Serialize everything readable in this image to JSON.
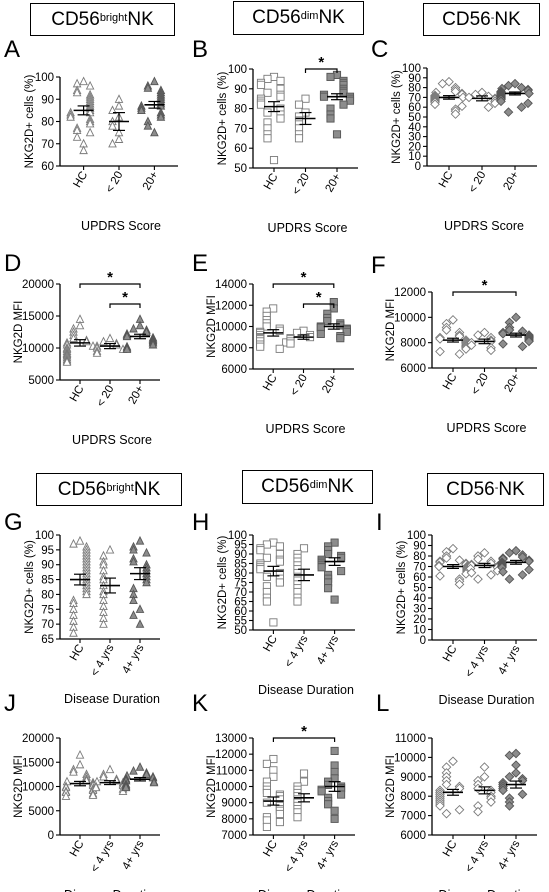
{
  "headers": [
    {
      "base": "CD56",
      "sup": "bright",
      "tail": " NK"
    },
    {
      "base": "CD56",
      "sup": "dim",
      "tail": " NK"
    },
    {
      "base": "CD56",
      "sup": "-",
      "tail": " NK"
    },
    {
      "base": "CD56",
      "sup": "bright",
      "tail": " NK"
    },
    {
      "base": "CD56",
      "sup": "dim",
      "tail": " NK"
    },
    {
      "base": "CD56",
      "sup": "-",
      "tail": " NK"
    }
  ],
  "chart_data": [
    {
      "letter": "A",
      "type": "scatter",
      "marker": "triangle",
      "ylabel": "NKG2D+ cells (%)",
      "xlabel": "UPDRS Score",
      "categories": [
        "HC",
        "< 20",
        "20+"
      ],
      "ylim": [
        60,
        100
      ],
      "yticks": [
        60,
        70,
        80,
        90,
        100
      ],
      "means": [
        85,
        80,
        87.5
      ],
      "sem": [
        2,
        4,
        1.5
      ],
      "points": [
        [
          98,
          97,
          96,
          94,
          93,
          92,
          91,
          90,
          89,
          88,
          87,
          86,
          85,
          84,
          84,
          83,
          82,
          81,
          80,
          79,
          77,
          76,
          75,
          73,
          70,
          67
        ],
        [
          90,
          87,
          85,
          82,
          80,
          78,
          75,
          72,
          70
        ],
        [
          98,
          96,
          95,
          94,
          93,
          92,
          91,
          90,
          89,
          88,
          87,
          87,
          86,
          85,
          84,
          83,
          82,
          80,
          78,
          75
        ]
      ],
      "brackets": []
    },
    {
      "letter": "B",
      "type": "scatter",
      "marker": "square",
      "ylabel": "NKG2D+ cells (%)",
      "xlabel": "UPDRS Score",
      "categories": [
        "HC",
        "< 20",
        "20+"
      ],
      "ylim": [
        50,
        100
      ],
      "yticks": [
        50,
        60,
        70,
        80,
        90,
        100
      ],
      "means": [
        81,
        75,
        86
      ],
      "sem": [
        2.5,
        3,
        1.5
      ],
      "points": [
        [
          96,
          95,
          94,
          93,
          92,
          90,
          88,
          87,
          86,
          85,
          84,
          83,
          82,
          80,
          78,
          77,
          75,
          73,
          70,
          67,
          65,
          54
        ],
        [
          85,
          82,
          78,
          76,
          74,
          72,
          70,
          67,
          65
        ],
        [
          97,
          96,
          94,
          93,
          92,
          90,
          89,
          88,
          87,
          86,
          86,
          85,
          84,
          82,
          80,
          77,
          75,
          67
        ]
      ],
      "brackets": [
        {
          "from": 1,
          "to": 2,
          "level": 0,
          "label": "*"
        }
      ]
    },
    {
      "letter": "C",
      "type": "scatter",
      "marker": "diamond",
      "ylabel": "NKG2D+ cells (%)",
      "xlabel": "UPDRS Score",
      "categories": [
        "HC",
        "< 20",
        "20+"
      ],
      "ylim": [
        0,
        100
      ],
      "yticks": [
        0,
        10,
        20,
        30,
        40,
        50,
        60,
        70,
        80,
        90,
        100
      ],
      "means": [
        70,
        69,
        74
      ],
      "sem": [
        1.8,
        2.5,
        1.5
      ],
      "points": [
        [
          86,
          84,
          80,
          78,
          76,
          75,
          74,
          73,
          72,
          71,
          70,
          70,
          69,
          68,
          67,
          66,
          65,
          63,
          61,
          58,
          56,
          53
        ],
        [
          75,
          73,
          71,
          70,
          69,
          68,
          66,
          64,
          60
        ],
        [
          84,
          82,
          80,
          79,
          78,
          77,
          76,
          75,
          74,
          74,
          73,
          72,
          71,
          70,
          69,
          68,
          66,
          64,
          60,
          55
        ]
      ],
      "brackets": []
    },
    {
      "letter": "D",
      "type": "scatter",
      "marker": "triangle",
      "ylabel": "NKG2D MFI",
      "xlabel": "UPDRS Score",
      "categories": [
        "HC",
        "< 20",
        "20+"
      ],
      "ylim": [
        5000,
        20000
      ],
      "yticks": [
        5000,
        10000,
        15000,
        20000
      ],
      "means": [
        10800,
        10300,
        11800
      ],
      "sem": [
        500,
        400,
        350
      ],
      "points": [
        [
          14500,
          13500,
          13000,
          12500,
          12000,
          11500,
          11200,
          11000,
          10800,
          10500,
          10300,
          10000,
          9800,
          9500,
          9200,
          9000,
          8800,
          8500,
          8200,
          8000,
          7800
        ],
        [
          11500,
          11000,
          10700,
          10500,
          10300,
          10000,
          9800,
          9500,
          9200
        ],
        [
          14500,
          13500,
          13000,
          12800,
          12500,
          12200,
          12000,
          11800,
          11600,
          11400,
          11200,
          11000,
          10800,
          10500,
          10200,
          10000,
          9800
        ]
      ],
      "brackets": [
        {
          "from": 0,
          "to": 2,
          "level": 1,
          "label": "*"
        },
        {
          "from": 1,
          "to": 2,
          "level": 0,
          "label": "*"
        }
      ]
    },
    {
      "letter": "E",
      "type": "scatter",
      "marker": "square",
      "ylabel": "NKG2D MFI",
      "xlabel": "UPDRS Score",
      "categories": [
        "HC",
        "< 20",
        "20+"
      ],
      "ylim": [
        6000,
        14000
      ],
      "yticks": [
        6000,
        8000,
        10000,
        12000,
        14000
      ],
      "means": [
        9400,
        9000,
        10000
      ],
      "sem": [
        300,
        200,
        250
      ],
      "points": [
        [
          11700,
          11400,
          11000,
          10600,
          10300,
          10000,
          9800,
          9600,
          9500,
          9400,
          9200,
          9000,
          8900,
          8800,
          8600,
          8500,
          8300,
          8100,
          7900
        ],
        [
          9600,
          9400,
          9200,
          9000,
          8900,
          8800,
          8600,
          8400
        ],
        [
          12300,
          11700,
          11200,
          10800,
          10500,
          10300,
          10100,
          10000,
          9900,
          9800,
          9700,
          9500,
          9300,
          9100,
          8900
        ]
      ],
      "brackets": [
        {
          "from": 0,
          "to": 2,
          "level": 1,
          "label": "*"
        },
        {
          "from": 1,
          "to": 2,
          "level": 0,
          "label": "*"
        }
      ]
    },
    {
      "letter": "F",
      "type": "scatter",
      "marker": "diamond",
      "ylabel": "NKG2D MFI",
      "xlabel": "UPDRS Score",
      "categories": [
        "HC",
        "< 20",
        "20+"
      ],
      "ylim": [
        6000,
        12000
      ],
      "yticks": [
        6000,
        8000,
        10000,
        12000
      ],
      "means": [
        8200,
        8100,
        8600
      ],
      "sem": [
        150,
        180,
        150
      ],
      "points": [
        [
          9800,
          9500,
          9200,
          9000,
          8800,
          8600,
          8500,
          8400,
          8300,
          8200,
          8100,
          8000,
          7900,
          7800,
          7700,
          7600,
          7500,
          7300,
          7100
        ],
        [
          8800,
          8600,
          8400,
          8200,
          8100,
          8000,
          7800,
          7600,
          7400
        ],
        [
          10000,
          9600,
          9200,
          9000,
          8900,
          8800,
          8700,
          8600,
          8500,
          8400,
          8300,
          8200,
          8100,
          7900,
          7700
        ]
      ],
      "brackets": [
        {
          "from": 0,
          "to": 2,
          "level": 0,
          "label": "*"
        }
      ]
    },
    {
      "letter": "G",
      "type": "scatter",
      "marker": "triangle",
      "ylabel": "NKG2D+ cells (%)",
      "xlabel": "Disease Duration",
      "categories": [
        "HC",
        "< 4 yrs",
        "4+ yrs"
      ],
      "ylim": [
        65,
        100
      ],
      "yticks": [
        65,
        70,
        75,
        80,
        85,
        90,
        95,
        100
      ],
      "means": [
        85,
        83,
        87
      ],
      "sem": [
        1.8,
        2.5,
        2
      ],
      "points": [
        [
          98,
          97,
          96,
          95,
          94,
          93,
          92,
          91,
          90,
          89,
          88,
          87,
          86,
          85,
          84,
          83,
          82,
          81,
          80,
          78,
          77,
          75,
          73,
          71,
          69,
          67
        ],
        [
          95,
          93,
          91,
          90,
          88,
          86,
          85,
          83,
          81,
          80,
          78,
          76,
          74,
          72,
          70
        ],
        [
          98,
          96,
          95,
          94,
          92,
          91,
          90,
          89,
          88,
          87,
          86,
          85,
          84,
          82,
          80,
          78,
          75,
          73,
          70
        ]
      ],
      "brackets": []
    },
    {
      "letter": "H",
      "type": "scatter",
      "marker": "square",
      "ylabel": "NKG2D+ cells (%)",
      "xlabel": "Disease Duration",
      "categories": [
        "HC",
        "< 4 yrs",
        "4+ yrs"
      ],
      "ylim": [
        50,
        100
      ],
      "yticks": [
        50,
        55,
        60,
        65,
        70,
        75,
        80,
        85,
        90,
        95,
        100
      ],
      "means": [
        81,
        79,
        86
      ],
      "sem": [
        2.5,
        3,
        2
      ],
      "points": [
        [
          96,
          95,
          94,
          93,
          92,
          90,
          88,
          87,
          86,
          85,
          84,
          83,
          82,
          80,
          78,
          77,
          75,
          73,
          70,
          67,
          65,
          54
        ],
        [
          93,
          90,
          88,
          86,
          84,
          82,
          80,
          78,
          76,
          74,
          72,
          70,
          67,
          65
        ],
        [
          96,
          94,
          92,
          90,
          89,
          88,
          87,
          86,
          85,
          84,
          83,
          81,
          79,
          77,
          75,
          72,
          66
        ]
      ],
      "brackets": []
    },
    {
      "letter": "I",
      "type": "scatter",
      "marker": "diamond",
      "ylabel": "NKG2D+ cells (%)",
      "xlabel": "Disease Duration",
      "categories": [
        "HC",
        "< 4 yrs",
        "4+ yrs"
      ],
      "ylim": [
        0,
        100
      ],
      "yticks": [
        0,
        10,
        20,
        30,
        40,
        50,
        60,
        70,
        80,
        90,
        100
      ],
      "means": [
        70,
        71,
        74
      ],
      "sem": [
        1.8,
        2,
        1.8
      ],
      "points": [
        [
          87,
          84,
          80,
          78,
          76,
          75,
          74,
          73,
          72,
          71,
          70,
          70,
          69,
          68,
          67,
          66,
          65,
          63,
          61,
          58,
          56,
          53
        ],
        [
          83,
          80,
          77,
          75,
          73,
          72,
          71,
          70,
          69,
          68,
          66,
          64,
          62,
          58
        ],
        [
          85,
          83,
          81,
          79,
          78,
          77,
          76,
          75,
          74,
          73,
          72,
          71,
          70,
          69,
          67,
          65,
          62,
          58
        ]
      ],
      "brackets": []
    },
    {
      "letter": "J",
      "type": "scatter",
      "marker": "triangle",
      "ylabel": "NKG2D MFI",
      "xlabel": "Disease Duration",
      "categories": [
        "HC",
        "< 4 yrs",
        "4+ yrs"
      ],
      "ylim": [
        0,
        20000
      ],
      "yticks": [
        0,
        5000,
        10000,
        15000,
        20000
      ],
      "means": [
        10600,
        10800,
        11500
      ],
      "sem": [
        450,
        400,
        350
      ],
      "points": [
        [
          16500,
          14500,
          13500,
          13000,
          12500,
          12000,
          11500,
          11200,
          11000,
          10800,
          10500,
          10200,
          10000,
          9800,
          9500,
          9200,
          9000,
          8800,
          8500,
          8200,
          8000
        ],
        [
          13500,
          12500,
          12000,
          11500,
          11200,
          11000,
          10800,
          10500,
          10200,
          10000,
          9800,
          9500,
          9000
        ],
        [
          14000,
          13200,
          12800,
          12500,
          12200,
          12000,
          11800,
          11600,
          11400,
          11200,
          11000,
          10800,
          10500,
          10200,
          10000,
          9800
        ]
      ],
      "brackets": []
    },
    {
      "letter": "K",
      "type": "scatter",
      "marker": "square",
      "ylabel": "NKG2D MFI",
      "xlabel": "Disease Duration",
      "categories": [
        "HC",
        "< 4 yrs",
        "4+ yrs"
      ],
      "ylim": [
        7000,
        13000
      ],
      "yticks": [
        7000,
        8000,
        9000,
        10000,
        11000,
        12000,
        13000
      ],
      "means": [
        9100,
        9300,
        10000
      ],
      "sem": [
        250,
        250,
        300
      ],
      "points": [
        [
          11700,
          11400,
          11000,
          10600,
          10300,
          10000,
          9800,
          9600,
          9500,
          9400,
          9200,
          9000,
          8900,
          8800,
          8600,
          8500,
          8300,
          8100,
          7900,
          7800,
          7500
        ],
        [
          10800,
          10300,
          10000,
          9800,
          9600,
          9400,
          9200,
          9000,
          8800,
          8600,
          8400,
          8100
        ],
        [
          12200,
          11300,
          10900,
          10500,
          10300,
          10100,
          10000,
          9900,
          9800,
          9700,
          9500,
          9300,
          9100,
          8900,
          8500,
          8000
        ]
      ],
      "brackets": [
        {
          "from": 0,
          "to": 2,
          "level": 0,
          "label": "*"
        }
      ]
    },
    {
      "letter": "L",
      "type": "scatter",
      "marker": "diamond",
      "ylabel": "NKG2D MFI",
      "xlabel": "Disease Duration",
      "categories": [
        "HC",
        "< 4 yrs",
        "4+ yrs"
      ],
      "ylim": [
        6000,
        11000
      ],
      "yticks": [
        6000,
        7000,
        8000,
        9000,
        10000,
        11000
      ],
      "means": [
        8200,
        8300,
        8600
      ],
      "sem": [
        150,
        180,
        180
      ],
      "points": [
        [
          9800,
          9500,
          9200,
          9000,
          8800,
          8600,
          8500,
          8400,
          8300,
          8200,
          8100,
          8000,
          7900,
          7800,
          7700,
          7600,
          7500,
          7300,
          7100
        ],
        [
          9500,
          9000,
          8800,
          8600,
          8400,
          8300,
          8200,
          8000,
          7900,
          7700,
          7500,
          7200
        ],
        [
          10200,
          10100,
          9600,
          9200,
          9000,
          8900,
          8800,
          8700,
          8600,
          8500,
          8400,
          8300,
          8100,
          7900,
          7700,
          7500
        ]
      ],
      "brackets": []
    }
  ]
}
